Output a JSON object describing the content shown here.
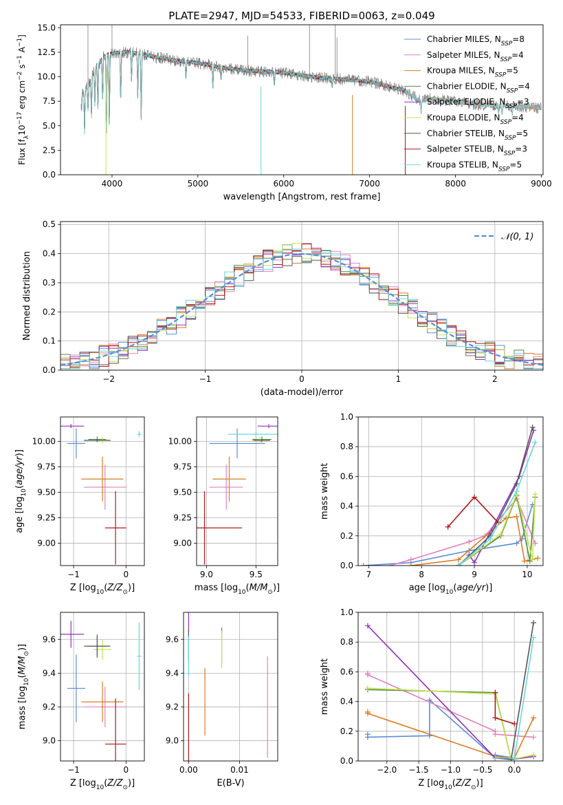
{
  "colors": {
    "chabrier_miles": "#5b8bd9",
    "salpeter_miles": "#e27fbc",
    "kroupa_miles": "#de7a1f",
    "chabrier_elodie": "#4f8a4a",
    "salpeter_elodie": "#8f31bf",
    "kroupa_elodie": "#c7e34a",
    "chabrier_stelib": "#555555",
    "salpeter_stelib": "#b01616",
    "kroupa_stelib": "#67d6df",
    "spectrum": "#7a7a7a",
    "gauss": "#5b8bd9",
    "grid": "#b0b0b0"
  },
  "chart_data": [
    {
      "id": "spectrum",
      "type": "line",
      "title": "PLATE=2947, MJD=54533, FIBERID=0063, z=0.049",
      "xlabel": "wavelength [Angstrom, rest frame]",
      "ylabel": "Flux [fλ10⁻¹⁷ erg cm⁻² s⁻¹ A⁻¹]",
      "xlim": [
        3400,
        9020
      ],
      "ylim": [
        0,
        15.3
      ],
      "xticks": [
        4000,
        5000,
        6000,
        7000,
        8000,
        9000
      ],
      "yticks": [
        0.0,
        2.5,
        5.0,
        7.5,
        10.0,
        12.5,
        15.0
      ],
      "grid": false,
      "legend_position": "top-right",
      "legend": [
        {
          "label": "Chabrier MILES, N",
          "sub": "SSP",
          "tail": "=8"
        },
        {
          "label": "Salpeter MILES, N",
          "sub": "SSP",
          "tail": "=4"
        },
        {
          "label": "Kroupa MILES, N",
          "sub": "SSP",
          "tail": "=5"
        },
        {
          "label": "Chabrier ELODIE, N",
          "sub": "SSP",
          "tail": "=4"
        },
        {
          "label": "Salpeter ELODIE, N",
          "sub": "SSP",
          "tail": "=3"
        },
        {
          "label": "Kroupa ELODIE, N",
          "sub": "SSP",
          "tail": "=4"
        },
        {
          "label": "Chabrier STELIB, N",
          "sub": "SSP",
          "tail": "=5"
        },
        {
          "label": "Salpeter STELIB, N",
          "sub": "SSP",
          "tail": "=3"
        },
        {
          "label": "Kroupa STELIB, N",
          "sub": "SSP",
          "tail": "=5"
        }
      ],
      "continuum": [
        [
          3650,
          8.3
        ],
        [
          3700,
          8.9
        ],
        [
          3750,
          9.6
        ],
        [
          3800,
          10.8
        ],
        [
          3850,
          11.4
        ],
        [
          3900,
          12.0
        ],
        [
          3950,
          12.3
        ],
        [
          4000,
          12.4
        ],
        [
          4100,
          12.5
        ],
        [
          4200,
          12.5
        ],
        [
          4300,
          12.4
        ],
        [
          4400,
          12.2
        ],
        [
          4500,
          12.0
        ],
        [
          4700,
          11.7
        ],
        [
          5000,
          11.4
        ],
        [
          5300,
          10.9
        ],
        [
          5600,
          10.6
        ],
        [
          6000,
          10.4
        ],
        [
          6300,
          10.0
        ],
        [
          6600,
          9.8
        ],
        [
          7000,
          9.5
        ],
        [
          7400,
          8.6
        ],
        [
          7600,
          7.5
        ],
        [
          7700,
          7.8
        ],
        [
          8000,
          7.5
        ],
        [
          8200,
          7.2
        ],
        [
          8500,
          7.1
        ],
        [
          8800,
          6.9
        ],
        [
          9000,
          6.8
        ]
      ],
      "absorption": [
        [
          3680,
          4.2
        ],
        [
          3720,
          6.5
        ],
        [
          3760,
          5.8
        ],
        [
          3800,
          7.0
        ],
        [
          3835,
          6.2
        ],
        [
          3890,
          6.8
        ],
        [
          3934,
          2.4
        ],
        [
          3969,
          4.3
        ],
        [
          4102,
          6.8
        ],
        [
          4227,
          9.2
        ],
        [
          4300,
          7.8
        ],
        [
          4340,
          5.6
        ],
        [
          4861,
          9.6
        ],
        [
          5175,
          8.6
        ],
        [
          5270,
          9.5
        ],
        [
          5890,
          8.9
        ],
        [
          6563,
          8.8
        ],
        [
          7600,
          6.2
        ],
        [
          8500,
          6.2
        ],
        [
          8542,
          6.0
        ],
        [
          8662,
          6.0
        ]
      ],
      "emission": [
        [
          3720,
          15.3
        ],
        [
          4000,
          15.3
        ],
        [
          5580,
          14.2
        ],
        [
          6300,
          15.3
        ],
        [
          6600,
          15.3
        ],
        [
          6620,
          14.0
        ]
      ],
      "dropouts": [
        [
          3930,
          0
        ],
        [
          5735,
          0
        ],
        [
          6800,
          0
        ],
        [
          7415,
          0
        ]
      ]
    },
    {
      "id": "residuals",
      "type": "histogram",
      "xlabel": "(data-model)/error",
      "ylabel": "Normed distribution",
      "xlim": [
        -2.5,
        2.5
      ],
      "ylim": [
        0,
        0.51
      ],
      "xticks": [
        -2,
        -1,
        0,
        1,
        2
      ],
      "yticks": [
        0.0,
        0.1,
        0.2,
        0.3,
        0.4,
        0.5
      ],
      "grid": true,
      "legend_position": "top-right",
      "legend": [
        {
          "label": "𝒩(0, 1)"
        }
      ],
      "bin_width": 0.1
    },
    {
      "id": "age-vs-Z",
      "type": "scatter",
      "xlabel": "Z [log₁₀(Z/Z⊙)]",
      "ylabel": "age  [log₁₀(age/yr)]",
      "xlim": [
        -1.25,
        0.35
      ],
      "ylim": [
        8.78,
        10.24
      ],
      "xticks": [
        -1,
        0
      ],
      "yticks": [
        9.0,
        9.25,
        9.5,
        9.75,
        10.0
      ],
      "grid": true
    },
    {
      "id": "age-vs-mass",
      "type": "scatter",
      "xlabel": "mass [log₁₀(M/M⊙)]",
      "ylabel": "",
      "xlim": [
        8.9,
        9.72
      ],
      "ylim": [
        8.78,
        10.24
      ],
      "xticks": [
        9.0,
        9.5
      ],
      "yticks": [
        9.0,
        9.25,
        9.5,
        9.75,
        10.0
      ],
      "grid": true
    },
    {
      "id": "weight-vs-age",
      "type": "line",
      "xlabel": "age  [log₁₀(age/yr)]",
      "ylabel": "mass weight",
      "xlim": [
        6.8,
        10.3
      ],
      "ylim": [
        0,
        1.0
      ],
      "xticks": [
        7,
        8,
        9,
        10
      ],
      "yticks": [
        0.0,
        0.2,
        0.4,
        0.6,
        0.8,
        1.0
      ],
      "grid": true
    },
    {
      "id": "mass-vs-Z",
      "type": "scatter",
      "xlabel": "Z [log₁₀(Z/Z⊙)]",
      "ylabel": "mass [log₁₀(M/M⊙)]",
      "xlim": [
        -1.25,
        0.35
      ],
      "ylim": [
        8.88,
        9.76
      ],
      "xticks": [
        -1,
        0
      ],
      "yticks": [
        9.0,
        9.2,
        9.4,
        9.6
      ],
      "grid": true
    },
    {
      "id": "mass-vs-EBV",
      "type": "scatter",
      "xlabel": "E(B-V)",
      "ylabel": "",
      "xlim": [
        -0.001,
        0.0175
      ],
      "ylim": [
        8.88,
        9.76
      ],
      "xticks": [
        0.0,
        0.01
      ],
      "xticklabels": [
        "0.00",
        "0.01"
      ],
      "yticks": [
        9.0,
        9.2,
        9.4,
        9.6
      ],
      "grid": true
    },
    {
      "id": "weight-vs-Z",
      "type": "line",
      "xlabel": "Z [log₁₀(Z/Z⊙)]",
      "ylabel": "mass weight",
      "xlim": [
        -2.45,
        0.45
      ],
      "ylim": [
        0,
        1.0
      ],
      "xticks": [
        -2.0,
        -1.5,
        -1.0,
        -0.5,
        0.0
      ],
      "yticks": [
        0.0,
        0.2,
        0.4,
        0.6,
        0.8,
        1.0
      ],
      "grid": true
    }
  ],
  "models": [
    {
      "key": "chabrier_miles",
      "Z": -0.95,
      "Zerr": 0.17,
      "age": 9.98,
      "ageerr": 0.37,
      "mass": 9.31,
      "masserr": 0.2,
      "ebv": 0.0,
      "ebverr": 0.0,
      "hist_seed": 11,
      "age_weight": [
        [
          6.9,
          0.0
        ],
        [
          7.8,
          0.02
        ],
        [
          8.9,
          0.1
        ],
        [
          9.8,
          0.15
        ],
        [
          9.9,
          0.18
        ],
        [
          10.1,
          0.41
        ]
      ],
      "Z_weight": [
        [
          -2.3,
          0.18
        ],
        [
          -2.3,
          0.16
        ],
        [
          -1.33,
          0.17
        ],
        [
          -1.33,
          0.41
        ],
        [
          -0.3,
          0.02
        ],
        [
          -0.3,
          0.04
        ],
        [
          0.0,
          0.02
        ]
      ]
    },
    {
      "key": "salpeter_miles",
      "Z": -0.4,
      "Zerr": 0.4,
      "age": 9.55,
      "ageerr": 0.55,
      "mass": 9.2,
      "masserr": 0.12,
      "ebv": 0.0155,
      "ebverr": 0.3,
      "hist_seed": 23,
      "age_weight": [
        [
          7.4,
          0.0
        ],
        [
          7.8,
          0.04
        ],
        [
          8.9,
          0.16
        ],
        [
          9.2,
          0.2
        ],
        [
          9.8,
          0.45
        ],
        [
          10.15,
          0.15
        ]
      ],
      "Z_weight": [
        [
          -2.3,
          0.59
        ],
        [
          -2.3,
          0.58
        ],
        [
          -0.3,
          0.2
        ],
        [
          -0.3,
          0.18
        ],
        [
          0.3,
          0.16
        ]
      ]
    },
    {
      "key": "kroupa_miles",
      "Z": -0.45,
      "Zerr": 0.4,
      "age": 9.63,
      "ageerr": 0.55,
      "mass": 9.23,
      "masserr": 0.12,
      "ebv": 0.0032,
      "ebverr": 0.2,
      "hist_seed": 37,
      "age_weight": [
        [
          7.8,
          0.0
        ],
        [
          8.7,
          0.04
        ],
        [
          9.6,
          0.32
        ],
        [
          9.8,
          0.33
        ],
        [
          9.95,
          0.03
        ],
        [
          10.2,
          0.05
        ]
      ],
      "Z_weight": [
        [
          -2.3,
          0.33
        ],
        [
          -2.3,
          0.32
        ],
        [
          -0.3,
          0.03
        ],
        [
          0.0,
          0.02
        ],
        [
          0.3,
          0.29
        ]
      ]
    },
    {
      "key": "chabrier_elodie",
      "Z": -0.55,
      "Zerr": 0.17,
      "age": 10.02,
      "ageerr": 0.07,
      "mass": 9.56,
      "masserr": 0.07,
      "ebv": 0.0065,
      "ebverr": 0.11,
      "hist_seed": 41,
      "age_weight": [
        [
          8.7,
          0.0
        ],
        [
          9.5,
          0.2
        ],
        [
          9.8,
          0.47
        ],
        [
          10.05,
          0.03
        ],
        [
          10.15,
          0.46
        ]
      ],
      "Z_weight": [
        [
          -2.3,
          0.48
        ],
        [
          -0.3,
          0.46
        ],
        [
          -0.05,
          0.01
        ],
        [
          0.3,
          0.03
        ]
      ]
    },
    {
      "key": "salpeter_elodie",
      "Z": -1.05,
      "Zerr": 0.25,
      "age": 10.15,
      "ageerr": 0.05,
      "mass": 9.63,
      "masserr": 0.08,
      "ebv": 0.0,
      "ebverr": 0.15,
      "hist_seed": 53,
      "age_weight": [
        [
          8.9,
          0.07
        ],
        [
          9.0,
          0.02
        ],
        [
          9.85,
          0.6
        ],
        [
          10.12,
          0.91
        ]
      ],
      "Z_weight": [
        [
          -2.3,
          0.91
        ],
        [
          -0.3,
          0.02
        ],
        [
          -0.05,
          0.01
        ],
        [
          0.3,
          0.03
        ]
      ]
    },
    {
      "key": "kroupa_elodie",
      "Z": -0.45,
      "Zerr": 0.17,
      "age": 10.01,
      "ageerr": 0.08,
      "mass": 9.54,
      "masserr": 0.06,
      "ebv": 0.0065,
      "ebverr": 0.11,
      "hist_seed": 67,
      "age_weight": [
        [
          8.7,
          0.0
        ],
        [
          9.5,
          0.21
        ],
        [
          9.8,
          0.48
        ],
        [
          10.1,
          0.04
        ],
        [
          10.15,
          0.48
        ]
      ],
      "Z_weight": [
        [
          -2.3,
          0.49
        ],
        [
          -0.3,
          0.45
        ],
        [
          -0.05,
          0.01
        ],
        [
          0.3,
          0.04
        ]
      ]
    },
    {
      "key": "chabrier_stelib",
      "Z": -0.55,
      "Zerr": 0.25,
      "age": 10.01,
      "ageerr": 0.03,
      "mass": 9.56,
      "masserr": 0.06,
      "ebv": 0.0,
      "ebverr": 0.1,
      "hist_seed": 71,
      "age_weight": [
        [
          8.7,
          0.0
        ],
        [
          9.3,
          0.2
        ],
        [
          9.8,
          0.55
        ],
        [
          10.1,
          0.93
        ]
      ],
      "Z_weight": [
        [
          -0.3,
          0.02
        ],
        [
          -0.05,
          0.01
        ],
        [
          0.3,
          0.93
        ]
      ]
    },
    {
      "key": "salpeter_stelib",
      "Z": -0.2,
      "Zerr": 0.2,
      "age": 9.15,
      "ageerr": 0.9,
      "mass": 8.98,
      "masserr": 0.27,
      "ebv": 0.0,
      "ebverr": 0.3,
      "hist_seed": 83,
      "age_weight": [
        [
          8.5,
          0.26
        ],
        [
          9.0,
          0.46
        ],
        [
          9.45,
          0.29
        ]
      ],
      "Z_weight": [
        [
          -0.3,
          0.46
        ],
        [
          -0.3,
          0.29
        ],
        [
          0.0,
          0.25
        ]
      ]
    },
    {
      "key": "kroupa_stelib",
      "Z": 0.25,
      "Zerr": 0.04,
      "age": 10.07,
      "ageerr": 0.07,
      "mass": 9.5,
      "masserr": 0.2,
      "ebv": 0.0,
      "ebverr": 0.12,
      "hist_seed": 97,
      "age_weight": [
        [
          8.7,
          0.0
        ],
        [
          9.3,
          0.18
        ],
        [
          9.8,
          0.5
        ],
        [
          10.15,
          0.83
        ]
      ],
      "Z_weight": [
        [
          -0.3,
          0.02
        ],
        [
          0.0,
          0.02
        ],
        [
          0.3,
          0.83
        ]
      ]
    }
  ]
}
